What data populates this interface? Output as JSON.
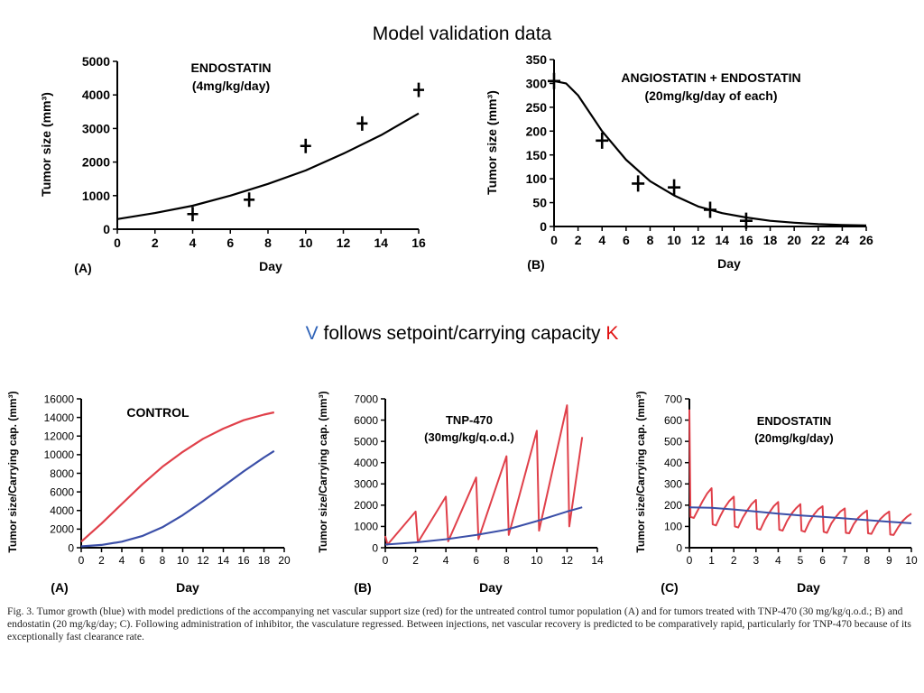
{
  "slide": {
    "title": "Model  validation data",
    "subtitle": {
      "v": "V",
      "middle": " follows setpoint/carrying capacity ",
      "k": "K"
    },
    "colors": {
      "v": "#2f63b8",
      "k": "#e01010",
      "growth": "#3b4fa8",
      "support": "#e0404a"
    },
    "caption": "Fig. 3. Tumor growth (blue) with model predictions of the accompanying net vascular support size (red) for the untreated control tumor population (A) and for tumors treated with TNP-470 (30 mg/kg/q.o.d.; B) and endostatin (20 mg/kg/day; C). Following administration of inhibitor, the vasculature regressed. Between injections, net vascular recovery is predicted to be comparatively rapid, particularly for TNP-470 because of its exceptionally fast clearance rate."
  },
  "chart_data": [
    {
      "type": "line",
      "panel": "(A)",
      "annotation": [
        "ENDOSTATIN",
        "(4mg/kg/day)"
      ],
      "xlabel": "Day",
      "ylabel": "Tumor  size (mm³)",
      "xlim": [
        0,
        16
      ],
      "ylim": [
        0,
        5000
      ],
      "xticks": [
        0,
        2,
        4,
        6,
        8,
        10,
        12,
        14,
        16
      ],
      "yticks": [
        0,
        1000,
        2000,
        3000,
        4000,
        5000
      ],
      "series": [
        {
          "kind": "line",
          "color": "#000000",
          "x": [
            0,
            2,
            4,
            6,
            8,
            10,
            12,
            14,
            16
          ],
          "y": [
            300,
            480,
            700,
            1000,
            1350,
            1750,
            2250,
            2800,
            3450
          ]
        },
        {
          "kind": "marker",
          "color": "#000000",
          "x": [
            4,
            7,
            10,
            13,
            16
          ],
          "y": [
            450,
            880,
            2480,
            3150,
            4150
          ]
        }
      ]
    },
    {
      "type": "line",
      "panel": "(B)",
      "annotation": [
        "ANGIOSTATIN + ENDOSTATIN",
        "(20mg/kg/day of each)"
      ],
      "xlabel": "Day",
      "ylabel": "Tumor  size (mm³)",
      "xlim": [
        0,
        26
      ],
      "ylim": [
        0,
        350
      ],
      "xticks": [
        0,
        2,
        4,
        6,
        8,
        10,
        12,
        14,
        16,
        18,
        20,
        22,
        24,
        26
      ],
      "yticks": [
        0,
        50,
        100,
        150,
        200,
        250,
        300,
        350
      ],
      "series": [
        {
          "kind": "line",
          "color": "#000000",
          "x": [
            0,
            1,
            2,
            4,
            6,
            8,
            10,
            12,
            14,
            16,
            18,
            20,
            22,
            24,
            26
          ],
          "y": [
            305,
            300,
            275,
            200,
            140,
            95,
            65,
            42,
            28,
            19,
            12,
            8,
            5,
            3,
            2
          ]
        },
        {
          "kind": "marker",
          "color": "#000000",
          "x": [
            0,
            4,
            7,
            10,
            13,
            16
          ],
          "y": [
            305,
            180,
            90,
            82,
            35,
            12
          ]
        }
      ]
    },
    {
      "type": "line",
      "panel": "(A)",
      "annotation": [
        "CONTROL"
      ],
      "xlabel": "Day",
      "ylabel": "Tumor size/Carrying cap. (mm³)",
      "xlim": [
        0,
        20
      ],
      "ylim": [
        0,
        16000
      ],
      "xticks": [
        0,
        2,
        4,
        6,
        8,
        10,
        12,
        14,
        16,
        18,
        20
      ],
      "yticks": [
        0,
        2000,
        4000,
        6000,
        8000,
        10000,
        12000,
        14000,
        16000
      ],
      "series": [
        {
          "kind": "line",
          "color": "#e0404a",
          "x": [
            0,
            2,
            4,
            6,
            8,
            10,
            12,
            14,
            16,
            18,
            19
          ],
          "y": [
            650,
            2600,
            4700,
            6800,
            8700,
            10300,
            11700,
            12800,
            13700,
            14300,
            14550
          ]
        },
        {
          "kind": "line",
          "color": "#3b4fa8",
          "x": [
            0,
            2,
            4,
            6,
            8,
            10,
            12,
            14,
            16,
            18,
            19
          ],
          "y": [
            150,
            300,
            650,
            1250,
            2200,
            3500,
            5000,
            6600,
            8200,
            9700,
            10400
          ]
        }
      ]
    },
    {
      "type": "line",
      "panel": "(B)",
      "annotation": [
        "TNP-470",
        "(30mg/kg/q.o.d.)"
      ],
      "xlabel": "Day",
      "ylabel": "Tumor size/Carrying cap. (mm³)",
      "xlim": [
        0,
        14
      ],
      "ylim": [
        0,
        7000
      ],
      "xticks": [
        0,
        2,
        4,
        6,
        8,
        10,
        12,
        14
      ],
      "yticks": [
        0,
        1000,
        2000,
        3000,
        4000,
        5000,
        6000,
        7000
      ],
      "series": [
        {
          "kind": "line",
          "color": "#e0404a",
          "x": [
            0,
            0.15,
            2,
            2.15,
            4,
            4.15,
            6,
            6.15,
            8,
            8.15,
            10,
            10.15,
            12,
            12.15,
            13
          ],
          "y": [
            550,
            150,
            1700,
            250,
            2400,
            300,
            3300,
            400,
            4300,
            600,
            5500,
            800,
            6700,
            1000,
            5200
          ]
        },
        {
          "kind": "line",
          "color": "#3b4fa8",
          "x": [
            0,
            2,
            4,
            6,
            8,
            10,
            12,
            13
          ],
          "y": [
            150,
            250,
            400,
            600,
            850,
            1250,
            1700,
            1900
          ]
        }
      ]
    },
    {
      "type": "line",
      "panel": "(C)",
      "annotation": [
        "ENDOSTATIN",
        "(20mg/kg/day)"
      ],
      "xlabel": "Day",
      "ylabel": "Tumor size/Carrying cap. (mm³)",
      "xlim": [
        0,
        10
      ],
      "ylim": [
        0,
        700
      ],
      "xticks": [
        0,
        1,
        2,
        3,
        4,
        5,
        6,
        7,
        8,
        9,
        10
      ],
      "yticks": [
        0,
        100,
        200,
        300,
        400,
        500,
        600,
        700
      ],
      "series": [
        {
          "kind": "line",
          "color": "#e0404a",
          "x": [
            0,
            0.05,
            0.2,
            0.4,
            0.6,
            0.8,
            1,
            1.05,
            1.2,
            1.4,
            1.6,
            1.8,
            2,
            2.05,
            2.2,
            2.4,
            2.6,
            2.8,
            3,
            3.05,
            3.2,
            3.4,
            3.6,
            3.8,
            4,
            4.05,
            4.2,
            4.4,
            4.6,
            4.8,
            5,
            5.05,
            5.2,
            5.4,
            5.6,
            5.8,
            6,
            6.05,
            6.2,
            6.4,
            6.6,
            6.8,
            7,
            7.05,
            7.2,
            7.4,
            7.6,
            7.8,
            8,
            8.05,
            8.2,
            8.4,
            8.6,
            8.8,
            9,
            9.05,
            9.2,
            9.4,
            9.6,
            9.8,
            10
          ],
          "y": [
            650,
            145,
            140,
            180,
            220,
            255,
            280,
            110,
            105,
            150,
            190,
            220,
            240,
            100,
            95,
            140,
            175,
            205,
            225,
            90,
            85,
            130,
            165,
            195,
            215,
            85,
            80,
            125,
            160,
            185,
            205,
            80,
            75,
            120,
            155,
            180,
            195,
            75,
            70,
            115,
            145,
            170,
            185,
            70,
            68,
            110,
            140,
            160,
            175,
            68,
            65,
            105,
            135,
            155,
            170,
            62,
            60,
            95,
            125,
            145,
            160
          ]
        },
        {
          "kind": "line",
          "color": "#3b4fa8",
          "x": [
            0,
            1,
            2,
            3,
            4,
            5,
            6,
            7,
            8,
            9,
            10
          ],
          "y": [
            190,
            188,
            180,
            170,
            160,
            152,
            145,
            138,
            130,
            122,
            115
          ]
        }
      ]
    }
  ]
}
